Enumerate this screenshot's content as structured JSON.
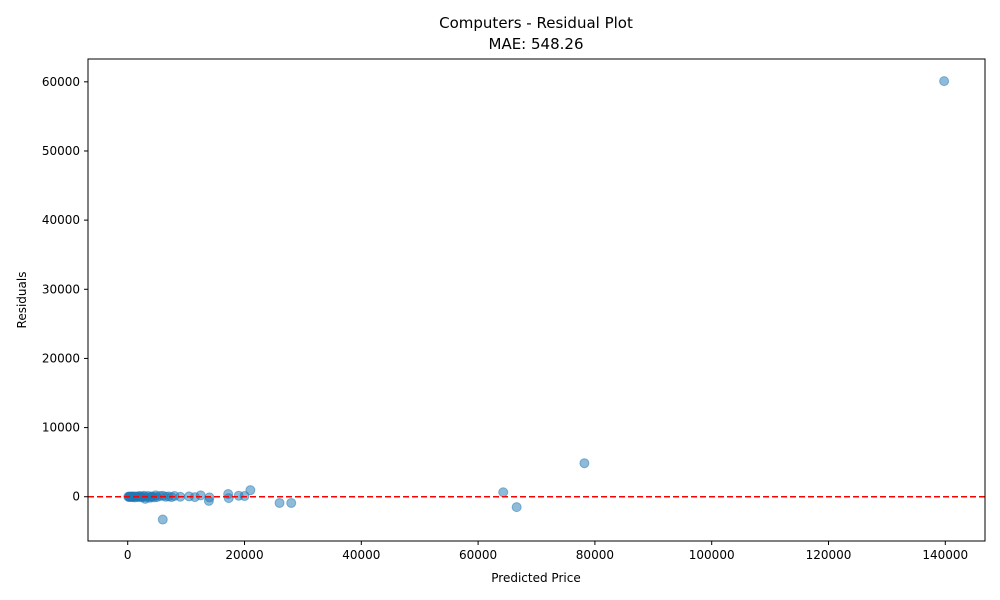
{
  "chart_data": {
    "type": "scatter",
    "title": "Computers - Residual Plot",
    "subtitle": "MAE: 548.26",
    "xlabel": "Predicted Price",
    "ylabel": "Residuals",
    "xlim": [
      -6800,
      146800
    ],
    "ylim": [
      -6400,
      63300
    ],
    "x_ticks": [
      0,
      20000,
      40000,
      60000,
      80000,
      100000,
      120000,
      140000
    ],
    "y_ticks": [
      0,
      10000,
      20000,
      30000,
      40000,
      50000,
      60000
    ],
    "reference_line": {
      "y": 0,
      "style": "dashed",
      "color": "#ff0000"
    },
    "point_color": "#1f77b4",
    "grid": false,
    "legend": "none",
    "points": [
      {
        "x": 139800,
        "y": 60100
      },
      {
        "x": 78200,
        "y": 4850
      },
      {
        "x": 64300,
        "y": 650
      },
      {
        "x": 66600,
        "y": -1500
      },
      {
        "x": 21000,
        "y": 950
      },
      {
        "x": 17200,
        "y": 400
      },
      {
        "x": 17300,
        "y": -200
      },
      {
        "x": 19000,
        "y": 150
      },
      {
        "x": 20000,
        "y": 100
      },
      {
        "x": 12500,
        "y": 200
      },
      {
        "x": 14000,
        "y": -100
      },
      {
        "x": 13900,
        "y": -600
      },
      {
        "x": 26000,
        "y": -900
      },
      {
        "x": 28000,
        "y": -900
      },
      {
        "x": 6000,
        "y": -3300
      },
      {
        "x": 10500,
        "y": 50
      },
      {
        "x": 11500,
        "y": -50
      },
      {
        "x": 9000,
        "y": 0
      },
      {
        "x": 8000,
        "y": 100
      },
      {
        "x": 7500,
        "y": -50
      },
      {
        "x": 7000,
        "y": 50
      },
      {
        "x": 6500,
        "y": 0
      },
      {
        "x": 6000,
        "y": 150
      },
      {
        "x": 5500,
        "y": 100
      },
      {
        "x": 5000,
        "y": -50
      },
      {
        "x": 4800,
        "y": 200
      },
      {
        "x": 4500,
        "y": -100
      },
      {
        "x": 4200,
        "y": 50
      },
      {
        "x": 4000,
        "y": 0
      },
      {
        "x": 3800,
        "y": -150
      },
      {
        "x": 3500,
        "y": 100
      },
      {
        "x": 3200,
        "y": -50
      },
      {
        "x": 3000,
        "y": -300
      },
      {
        "x": 2800,
        "y": 150
      },
      {
        "x": 2600,
        "y": 0
      },
      {
        "x": 2400,
        "y": -100
      },
      {
        "x": 2200,
        "y": 50
      },
      {
        "x": 2000,
        "y": 100
      },
      {
        "x": 1800,
        "y": -50
      },
      {
        "x": 1600,
        "y": 0
      },
      {
        "x": 1400,
        "y": 50
      },
      {
        "x": 1200,
        "y": -100
      },
      {
        "x": 1000,
        "y": 0
      },
      {
        "x": 900,
        "y": 50
      },
      {
        "x": 800,
        "y": -50
      },
      {
        "x": 700,
        "y": 0
      },
      {
        "x": 600,
        "y": 30
      },
      {
        "x": 500,
        "y": -30
      },
      {
        "x": 400,
        "y": 0
      },
      {
        "x": 300,
        "y": 20
      },
      {
        "x": 200,
        "y": -20
      },
      {
        "x": 100,
        "y": 0
      }
    ]
  }
}
